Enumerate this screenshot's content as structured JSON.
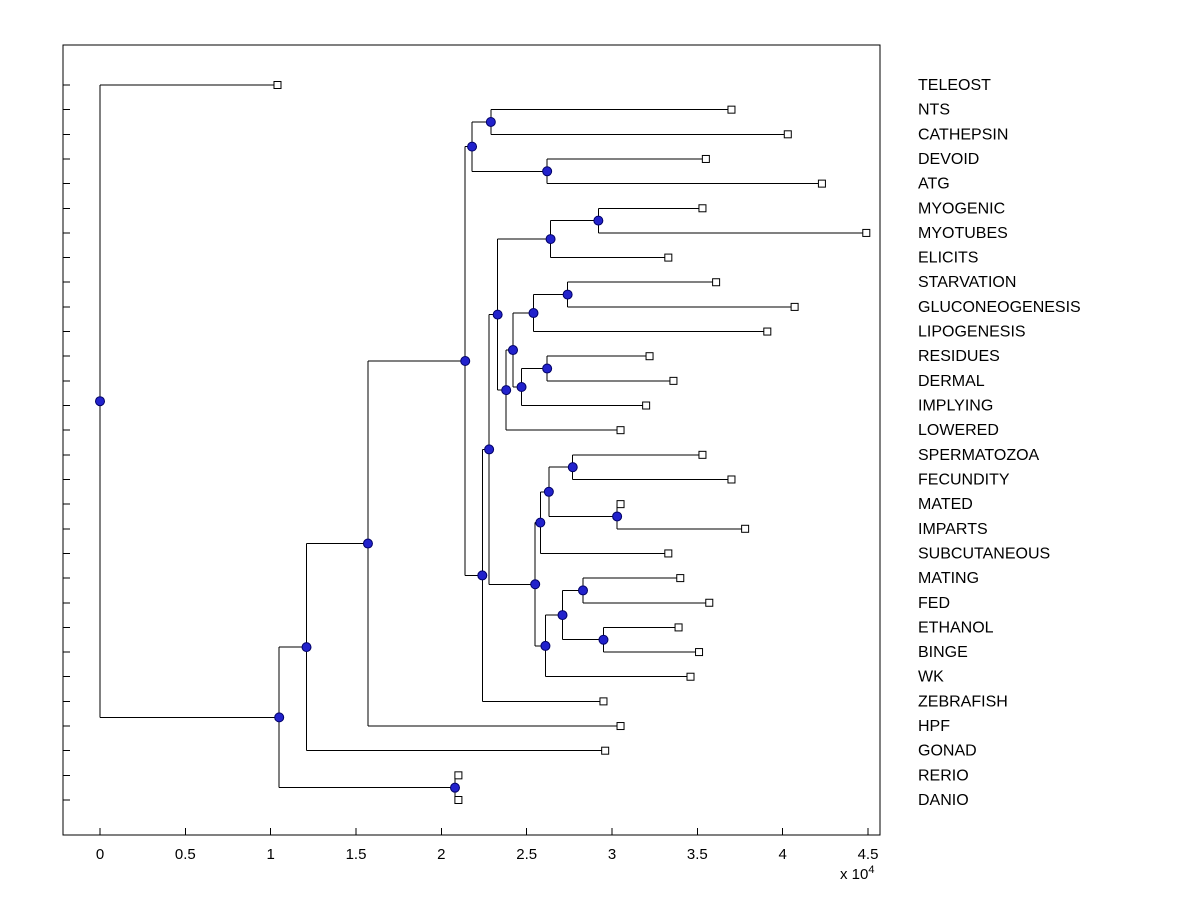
{
  "figure": {
    "background": "#ffffff",
    "x_multiplier_base": "x 10",
    "x_multiplier_exp": "4"
  },
  "chart_data": {
    "type": "dendrogram",
    "orientation": "left-to-right",
    "title": "",
    "x_axis": {
      "ticks": [
        0,
        0.5,
        1,
        1.5,
        2,
        2.5,
        3,
        3.5,
        4,
        4.5
      ],
      "tick_labels": [
        "0",
        "0.5",
        "1",
        "1.5",
        "2",
        "2.5",
        "3",
        "3.5",
        "4",
        "4.5"
      ],
      "multiplier_label": "x 10^4",
      "xlim": [
        -0.22,
        4.57
      ]
    },
    "legend": "none",
    "grid": false,
    "colors": {
      "line": "#000000",
      "node_fill": "#2222cc",
      "node_edge": "#000066",
      "leaf_fill": "#ffffff",
      "leaf_edge": "#000000",
      "axis": "#000000"
    },
    "leaves": [
      "TELEOST",
      "NTS",
      "CATHEPSIN",
      "DEVOID",
      "ATG",
      "MYOGENIC",
      "MYOTUBES",
      "ELICITS",
      "STARVATION",
      "GLUCONEOGENESIS",
      "LIPOGENESIS",
      "RESIDUES",
      "DERMAL",
      "IMPLYING",
      "LOWERED",
      "SPERMATOZOA",
      "FECUNDITY",
      "MATED",
      "IMPARTS",
      "SUBCUTANEOUS",
      "MATING",
      "FED",
      "ETHANOL",
      "BINGE",
      "WK",
      "ZEBRAFISH",
      "HPF",
      "GONAD",
      "RERIO",
      "DANIO"
    ],
    "tree": {
      "x": 0.0,
      "c": [
        {
          "n": "TELEOST",
          "x": 1.04
        },
        {
          "x": 1.05,
          "c": [
            {
              "x": 1.21,
              "c": [
                {
                  "x": 1.57,
                  "c": [
                    {
                      "x": 2.14,
                      "c": [
                        {
                          "x": 2.18,
                          "c": [
                            {
                              "x": 2.29,
                              "c": [
                                {
                                  "n": "NTS",
                                  "x": 3.7
                                },
                                {
                                  "n": "CATHEPSIN",
                                  "x": 4.03
                                }
                              ]
                            },
                            {
                              "x": 2.62,
                              "c": [
                                {
                                  "n": "DEVOID",
                                  "x": 3.55
                                },
                                {
                                  "n": "ATG",
                                  "x": 4.23
                                }
                              ]
                            }
                          ]
                        },
                        {
                          "x": 2.24,
                          "c": [
                            {
                              "x": 2.28,
                              "c": [
                                {
                                  "x": 2.33,
                                  "c": [
                                    {
                                      "x": 2.64,
                                      "c": [
                                        {
                                          "x": 2.92,
                                          "c": [
                                            {
                                              "n": "MYOGENIC",
                                              "x": 3.53
                                            },
                                            {
                                              "n": "MYOTUBES",
                                              "x": 4.49
                                            }
                                          ]
                                        },
                                        {
                                          "n": "ELICITS",
                                          "x": 3.33
                                        }
                                      ]
                                    },
                                    {
                                      "x": 2.38,
                                      "c": [
                                        {
                                          "x": 2.42,
                                          "c": [
                                            {
                                              "x": 2.54,
                                              "c": [
                                                {
                                                  "x": 2.74,
                                                  "c": [
                                                    {
                                                      "n": "STARVATION",
                                                      "x": 3.61
                                                    },
                                                    {
                                                      "n": "GLUCONEOGENESIS",
                                                      "x": 4.07
                                                    }
                                                  ]
                                                },
                                                {
                                                  "n": "LIPOGENESIS",
                                                  "x": 3.91
                                                }
                                              ]
                                            },
                                            {
                                              "x": 2.47,
                                              "c": [
                                                {
                                                  "x": 2.62,
                                                  "c": [
                                                    {
                                                      "n": "RESIDUES",
                                                      "x": 3.22
                                                    },
                                                    {
                                                      "n": "DERMAL",
                                                      "x": 3.36
                                                    }
                                                  ]
                                                },
                                                {
                                                  "n": "IMPLYING",
                                                  "x": 3.2
                                                }
                                              ]
                                            }
                                          ]
                                        },
                                        {
                                          "n": "LOWERED",
                                          "x": 3.05
                                        }
                                      ]
                                    }
                                  ]
                                },
                                {
                                  "x": 2.55,
                                  "c": [
                                    {
                                      "x": 2.58,
                                      "c": [
                                        {
                                          "x": 2.63,
                                          "c": [
                                            {
                                              "x": 2.77,
                                              "c": [
                                                {
                                                  "n": "SPERMATOZOA",
                                                  "x": 3.53
                                                },
                                                {
                                                  "n": "FECUNDITY",
                                                  "x": 3.7
                                                }
                                              ]
                                            },
                                            {
                                              "x": 3.03,
                                              "c": [
                                                {
                                                  "n": "MATED",
                                                  "x": 3.05
                                                },
                                                {
                                                  "n": "IMPARTS",
                                                  "x": 3.78
                                                }
                                              ]
                                            }
                                          ]
                                        },
                                        {
                                          "n": "SUBCUTANEOUS",
                                          "x": 3.33
                                        }
                                      ]
                                    },
                                    {
                                      "x": 2.61,
                                      "c": [
                                        {
                                          "x": 2.71,
                                          "c": [
                                            {
                                              "x": 2.83,
                                              "c": [
                                                {
                                                  "n": "MATING",
                                                  "x": 3.4
                                                },
                                                {
                                                  "n": "FED",
                                                  "x": 3.57
                                                }
                                              ]
                                            },
                                            {
                                              "x": 2.95,
                                              "c": [
                                                {
                                                  "n": "ETHANOL",
                                                  "x": 3.39
                                                },
                                                {
                                                  "n": "BINGE",
                                                  "x": 3.51
                                                }
                                              ]
                                            }
                                          ]
                                        },
                                        {
                                          "n": "WK",
                                          "x": 3.46
                                        }
                                      ]
                                    }
                                  ]
                                }
                              ]
                            },
                            {
                              "n": "ZEBRAFISH",
                              "x": 2.95
                            }
                          ]
                        }
                      ]
                    },
                    {
                      "n": "HPF",
                      "x": 3.05
                    }
                  ]
                },
                {
                  "n": "GONAD",
                  "x": 2.96
                }
              ]
            },
            {
              "x": 2.08,
              "c": [
                {
                  "n": "RERIO",
                  "x": 2.1
                },
                {
                  "n": "DANIO",
                  "x": 2.1
                }
              ]
            }
          ]
        }
      ]
    }
  }
}
